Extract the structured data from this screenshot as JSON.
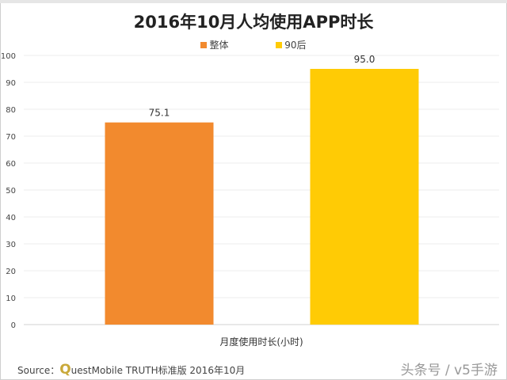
{
  "chart_data": {
    "type": "bar",
    "title": "2016年10月人均使用APP时长",
    "categories": [
      "月度使用时长(小时)"
    ],
    "series": [
      {
        "name": "整体",
        "values": [
          75.1
        ],
        "color": "#f28a2e",
        "label": "75.1"
      },
      {
        "name": "90后",
        "values": [
          95.0
        ],
        "color": "#ffcb05",
        "label": "95.0"
      }
    ],
    "xlabel": "月度使用时长(小时)",
    "ylabel": "",
    "ylim": [
      0,
      100
    ],
    "yticks": [
      "0",
      "10",
      "20",
      "30",
      "40",
      "50",
      "60",
      "70",
      "80",
      "90",
      "100"
    ],
    "grid": true,
    "legend_position": "top-center"
  },
  "footer": {
    "source_prefix": "Source：",
    "source_q": "Q",
    "source_text": "uestMobile TRUTH标准版 2016年10月",
    "watermark": "头条号 / v5手游"
  }
}
